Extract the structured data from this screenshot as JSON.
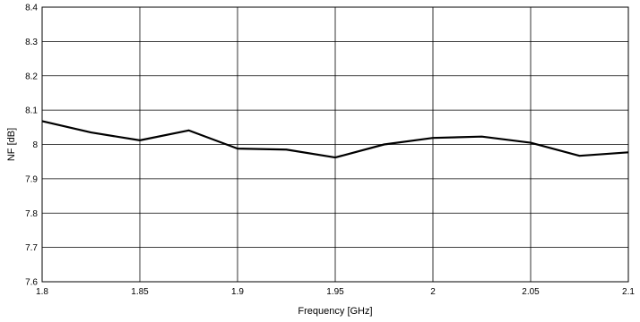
{
  "chart_data": {
    "type": "line",
    "title": "",
    "xlabel": "Frequency [GHz]",
    "ylabel": "NF [dB]",
    "xlim": [
      1.8,
      2.1
    ],
    "ylim": [
      7.6,
      8.4
    ],
    "grid": true,
    "x_ticks": [
      "1.8",
      "1.85",
      "1.9",
      "1.95",
      "2",
      "2.05",
      "2.1"
    ],
    "y_ticks": [
      "7.6",
      "7.7",
      "7.8",
      "7.9",
      "8",
      "8.1",
      "8.2",
      "8.3",
      "8.4"
    ],
    "series": [
      {
        "color": "#000000",
        "x": [
          1.8,
          1.825,
          1.85,
          1.875,
          1.9,
          1.925,
          1.95,
          1.975,
          2.0,
          2.025,
          2.05,
          2.075,
          2.1
        ],
        "y": [
          8.068,
          8.035,
          8.012,
          8.041,
          7.988,
          7.985,
          7.962,
          8.0,
          8.019,
          8.023,
          8.005,
          7.967,
          7.977
        ]
      }
    ]
  }
}
